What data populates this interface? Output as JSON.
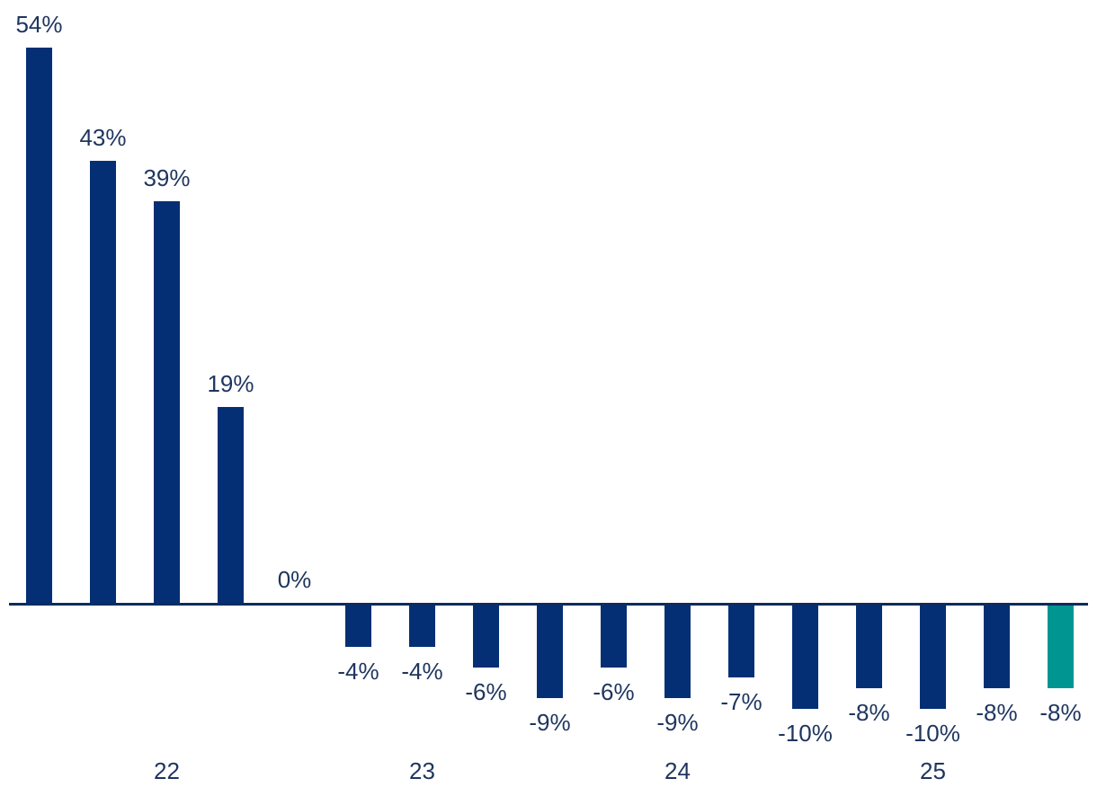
{
  "chart_data": {
    "type": "bar",
    "title": "",
    "unit": "%",
    "values": [
      54,
      43,
      39,
      19,
      0,
      -4,
      -4,
      -6,
      -9,
      -6,
      -9,
      -7,
      -10,
      -8,
      -10,
      -8,
      -8
    ],
    "bar_labels": [
      "54%",
      "43%",
      "39%",
      "19%",
      "0%",
      "-4%",
      "-4%",
      "-6%",
      "-9%",
      "-6%",
      "-9%",
      "-7%",
      "-10%",
      "-8%",
      "-10%",
      "-8%",
      "-8%"
    ],
    "x_ticks": [
      {
        "label": "22",
        "bar_index": 2
      },
      {
        "label": "23",
        "bar_index": 6
      },
      {
        "label": "24",
        "bar_index": 10
      },
      {
        "label": "25",
        "bar_index": 14
      }
    ],
    "highlight_index": 16,
    "colors": {
      "bar": "#042f74",
      "bar_highlight": "#009591",
      "value_label": "#1e355f",
      "axis_line": "#0d2b5e"
    },
    "ylim": [
      -19,
      59
    ],
    "grid": false,
    "legend": false,
    "label_position": "outside-end"
  }
}
